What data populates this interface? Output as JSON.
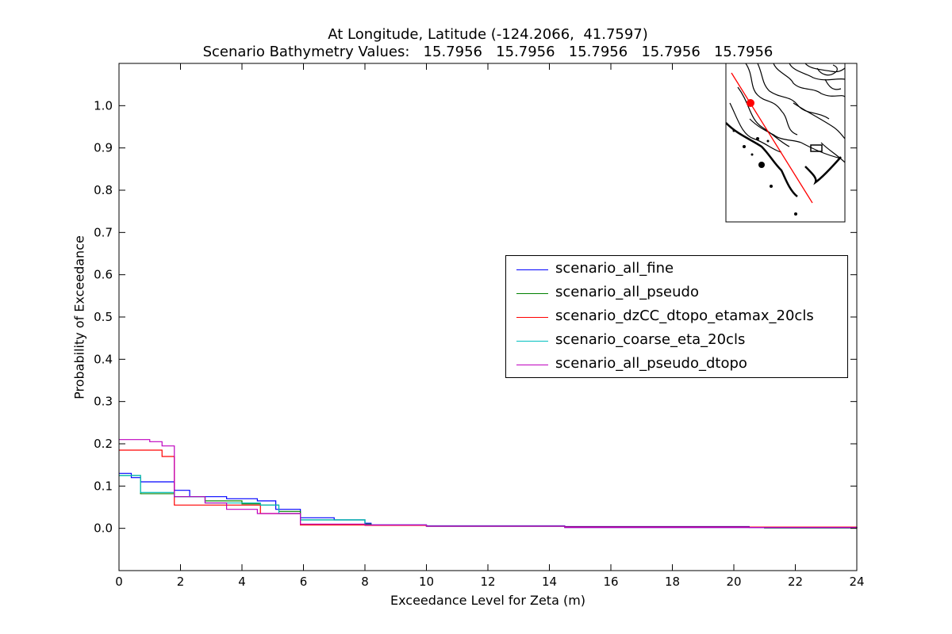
{
  "chart_data": {
    "type": "line",
    "title": "At Longitude, Latitude (-124.2066,  41.7597)",
    "subtitle": "Scenario Bathymetry Values:   15.7956   15.7956   15.7956   15.7956   15.7956",
    "xlabel": "Exceedance Level for Zeta (m)",
    "ylabel": "Probability of Exceedance",
    "xlim": [
      0,
      24
    ],
    "ylim": [
      -0.1,
      1.1
    ],
    "x_ticks": [
      "0",
      "2",
      "4",
      "6",
      "8",
      "10",
      "12",
      "14",
      "16",
      "18",
      "20",
      "22",
      "24"
    ],
    "y_ticks": [
      "0.0",
      "0.1",
      "0.2",
      "0.3",
      "0.4",
      "0.5",
      "0.6",
      "0.7",
      "0.8",
      "0.9",
      "1.0"
    ],
    "grid": false,
    "legend_placement": "center-right",
    "series": [
      {
        "name": "scenario_all_fine",
        "color": "#0000ff",
        "step": true,
        "points": [
          [
            0,
            0.13
          ],
          [
            0.4,
            0.12
          ],
          [
            0.7,
            0.11
          ],
          [
            1.8,
            0.09
          ],
          [
            2.3,
            0.075
          ],
          [
            3.5,
            0.07
          ],
          [
            4.5,
            0.065
          ],
          [
            5.1,
            0.045
          ],
          [
            5.9,
            0.025
          ],
          [
            7.0,
            0.02
          ],
          [
            8.0,
            0.012
          ],
          [
            8.2,
            0.008
          ],
          [
            10.0,
            0.006
          ],
          [
            14.5,
            0.004
          ],
          [
            20.5,
            0.002
          ],
          [
            21.0,
            0.001
          ],
          [
            24,
            0.0
          ]
        ]
      },
      {
        "name": "scenario_all_pseudo",
        "color": "#008000",
        "step": true,
        "points": [
          [
            0,
            0.125
          ],
          [
            0.7,
            0.082
          ],
          [
            1.8,
            0.075
          ],
          [
            2.8,
            0.065
          ],
          [
            4.0,
            0.058
          ],
          [
            4.6,
            0.055
          ],
          [
            5.2,
            0.04
          ],
          [
            5.9,
            0.02
          ],
          [
            8.0,
            0.01
          ],
          [
            8.2,
            0.007
          ],
          [
            10.0,
            0.005
          ],
          [
            14.5,
            0.003
          ],
          [
            21.0,
            0.001
          ],
          [
            24,
            0.0
          ]
        ]
      },
      {
        "name": "scenario_dzCC_dtopo_etamax_20cls",
        "color": "#ff0000",
        "step": true,
        "points": [
          [
            0,
            0.185
          ],
          [
            1.4,
            0.17
          ],
          [
            1.8,
            0.055
          ],
          [
            3.0,
            0.055
          ],
          [
            4.6,
            0.035
          ],
          [
            5.9,
            0.008
          ],
          [
            8.0,
            0.007
          ],
          [
            10.0,
            0.005
          ],
          [
            14.5,
            0.003
          ],
          [
            24,
            0.002
          ]
        ]
      },
      {
        "name": "scenario_coarse_eta_20cls",
        "color": "#00bfbf",
        "step": true,
        "points": [
          [
            0,
            0.125
          ],
          [
            0.7,
            0.085
          ],
          [
            1.8,
            0.075
          ],
          [
            2.8,
            0.06
          ],
          [
            4.0,
            0.06
          ],
          [
            4.6,
            0.055
          ],
          [
            5.2,
            0.035
          ],
          [
            5.9,
            0.02
          ],
          [
            8.0,
            0.008
          ],
          [
            10.0,
            0.005
          ],
          [
            14.5,
            0.002
          ],
          [
            24,
            0.001
          ]
        ]
      },
      {
        "name": "scenario_all_pseudo_dtopo",
        "color": "#bf00bf",
        "step": true,
        "points": [
          [
            0,
            0.21
          ],
          [
            1.0,
            0.205
          ],
          [
            1.4,
            0.195
          ],
          [
            1.8,
            0.075
          ],
          [
            2.8,
            0.06
          ],
          [
            3.5,
            0.045
          ],
          [
            4.5,
            0.035
          ],
          [
            5.9,
            0.01
          ],
          [
            8.0,
            0.008
          ],
          [
            10.0,
            0.005
          ],
          [
            14.5,
            0.002
          ],
          [
            24,
            0.0
          ]
        ]
      }
    ]
  },
  "inset": {
    "name": "location-map",
    "marker_color": "#ff0000",
    "transect_color": "#ff0000"
  }
}
